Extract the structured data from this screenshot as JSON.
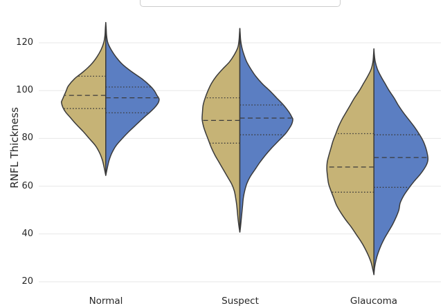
{
  "figure": {
    "ylabel": "RNFL Thickness"
  },
  "colors": {
    "left_fill": "#c6b376",
    "right_fill": "#5b7ec2",
    "outline": "#3a3a3a",
    "grid": "#e7e7e7",
    "tick_text": "#262626",
    "legend_border": "#cccccc",
    "background": "#ffffff"
  },
  "chart_data": {
    "type": "violin",
    "orientation": "vertical",
    "split": true,
    "title": "",
    "xlabel": "",
    "ylabel": "RNFL Thickness",
    "categories": [
      "Normal",
      "Suspect",
      "Glaucoma"
    ],
    "yticks": [
      20,
      40,
      60,
      80,
      100,
      120
    ],
    "ylim": [
      16.5,
      135
    ],
    "grid": "horizontal",
    "inner": "quartile",
    "legend": {
      "position": "top-center",
      "cut_off_at_top": true,
      "entries_visible": false
    },
    "groups": [
      {
        "category": "Normal",
        "left": {
          "min": 64.5,
          "q1": 92.5,
          "median": 98,
          "q3": 106,
          "max": 128.5,
          "profile": [
            [
              128.5,
              0
            ],
            [
              126,
              0.6
            ],
            [
              123,
              1.2
            ],
            [
              120,
              3
            ],
            [
              117,
              7
            ],
            [
              114,
              13
            ],
            [
              111,
              21
            ],
            [
              108,
              32
            ],
            [
              105,
              45
            ],
            [
              102,
              54
            ],
            [
              100,
              57
            ],
            [
              98,
              60
            ],
            [
              96,
              63
            ],
            [
              95,
              64
            ],
            [
              93,
              62
            ],
            [
              91,
              58
            ],
            [
              89,
              52
            ],
            [
              86,
              43
            ],
            [
              83,
              33
            ],
            [
              80,
              24
            ],
            [
              77,
              15
            ],
            [
              74,
              9
            ],
            [
              71,
              5
            ],
            [
              68,
              2.5
            ],
            [
              64.5,
              0
            ]
          ]
        },
        "right": {
          "min": 64.5,
          "q1": 90.7,
          "median": 97,
          "q3": 101.5,
          "max": 128.5,
          "profile": [
            [
              128.5,
              0
            ],
            [
              126,
              0.6
            ],
            [
              123,
              1.2
            ],
            [
              120,
              3
            ],
            [
              117,
              8
            ],
            [
              114,
              15
            ],
            [
              111,
              24
            ],
            [
              108,
              37
            ],
            [
              105,
              52
            ],
            [
              102,
              64
            ],
            [
              100,
              70
            ],
            [
              98,
              74
            ],
            [
              96.5,
              77
            ],
            [
              95,
              76
            ],
            [
              93,
              71
            ],
            [
              91,
              64
            ],
            [
              89,
              56
            ],
            [
              86,
              45
            ],
            [
              83,
              34
            ],
            [
              80,
              24
            ],
            [
              77,
              15
            ],
            [
              74,
              9
            ],
            [
              71,
              5
            ],
            [
              68,
              2.5
            ],
            [
              64.5,
              0
            ]
          ]
        }
      },
      {
        "category": "Suspect",
        "left": {
          "min": 40.8,
          "q1": 78,
          "median": 87.5,
          "q3": 97,
          "max": 126,
          "profile": [
            [
              126,
              0
            ],
            [
              124,
              0.5
            ],
            [
              121,
              1.2
            ],
            [
              118,
              3
            ],
            [
              115,
              8
            ],
            [
              112,
              15
            ],
            [
              109,
              25
            ],
            [
              106,
              34
            ],
            [
              103,
              41
            ],
            [
              100,
              46
            ],
            [
              97,
              50
            ],
            [
              94,
              53
            ],
            [
              91,
              54
            ],
            [
              88,
              54.5
            ],
            [
              85,
              52.5
            ],
            [
              82,
              49
            ],
            [
              79,
              45
            ],
            [
              76,
              41
            ],
            [
              73,
              36
            ],
            [
              70,
              30
            ],
            [
              67,
              24
            ],
            [
              64,
              18
            ],
            [
              61,
              12
            ],
            [
              58,
              8
            ],
            [
              55,
              6
            ],
            [
              52,
              4.5
            ],
            [
              49,
              3.5
            ],
            [
              46,
              2.5
            ],
            [
              43,
              1.2
            ],
            [
              40.8,
              0
            ]
          ]
        },
        "right": {
          "min": 40.8,
          "q1": 81.5,
          "median": 88.5,
          "q3": 94,
          "max": 126,
          "profile": [
            [
              126,
              0
            ],
            [
              124,
              0.5
            ],
            [
              121,
              1.2
            ],
            [
              118,
              3
            ],
            [
              115,
              6
            ],
            [
              112,
              10
            ],
            [
              109,
              16
            ],
            [
              106,
              23
            ],
            [
              103,
              32
            ],
            [
              100,
              43
            ],
            [
              97,
              53
            ],
            [
              94,
              63
            ],
            [
              91,
              71
            ],
            [
              89,
              75
            ],
            [
              88,
              76.5
            ],
            [
              86,
              75
            ],
            [
              84,
              71
            ],
            [
              82,
              66
            ],
            [
              79,
              56
            ],
            [
              76,
              46
            ],
            [
              73,
              37
            ],
            [
              70,
              29
            ],
            [
              67,
              22
            ],
            [
              64,
              15
            ],
            [
              61,
              10
            ],
            [
              58,
              7
            ],
            [
              55,
              5
            ],
            [
              52,
              4
            ],
            [
              49,
              3
            ],
            [
              46,
              2
            ],
            [
              43,
              1
            ],
            [
              40.8,
              0
            ]
          ]
        }
      },
      {
        "category": "Glaucoma",
        "left": {
          "min": 23,
          "q1": 57.5,
          "median": 68,
          "q3": 82,
          "max": 117.5,
          "profile": [
            [
              117.5,
              0
            ],
            [
              115,
              0.6
            ],
            [
              112,
              1.5
            ],
            [
              109,
              4
            ],
            [
              106,
              9
            ],
            [
              103,
              15
            ],
            [
              100,
              21
            ],
            [
              97,
              28
            ],
            [
              94,
              34
            ],
            [
              91,
              40
            ],
            [
              88,
              46
            ],
            [
              85,
              51
            ],
            [
              82,
              55
            ],
            [
              79,
              59
            ],
            [
              76,
              62
            ],
            [
              73,
              65
            ],
            [
              70,
              67.5
            ],
            [
              67,
              68
            ],
            [
              64,
              67
            ],
            [
              61,
              65.5
            ],
            [
              58,
              62
            ],
            [
              55,
              58
            ],
            [
              52,
              54
            ],
            [
              49,
              48
            ],
            [
              46,
              41
            ],
            [
              43,
              33
            ],
            [
              40,
              26
            ],
            [
              37,
              19
            ],
            [
              34,
              13
            ],
            [
              31,
              8
            ],
            [
              28,
              4
            ],
            [
              25,
              1.5
            ],
            [
              23,
              0
            ]
          ]
        },
        "right": {
          "min": 23,
          "q1": 59.5,
          "median": 72,
          "q3": 81.5,
          "max": 117.5,
          "profile": [
            [
              117.5,
              0
            ],
            [
              115,
              0.6
            ],
            [
              112,
              2
            ],
            [
              109,
              5
            ],
            [
              106,
              10
            ],
            [
              103,
              16
            ],
            [
              100,
              22
            ],
            [
              97,
              29
            ],
            [
              94,
              35
            ],
            [
              91,
              42
            ],
            [
              88,
              50
            ],
            [
              85,
              58
            ],
            [
              82,
              65
            ],
            [
              79,
              71
            ],
            [
              76,
              75
            ],
            [
              73,
              77.5
            ],
            [
              71,
              78
            ],
            [
              69,
              76
            ],
            [
              67,
              72
            ],
            [
              65,
              67
            ],
            [
              62,
              58
            ],
            [
              59,
              50
            ],
            [
              56,
              43
            ],
            [
              53,
              38
            ],
            [
              50,
              36
            ],
            [
              47,
              32
            ],
            [
              44,
              27
            ],
            [
              41,
              21
            ],
            [
              38,
              15
            ],
            [
              35,
              10
            ],
            [
              32,
              6
            ],
            [
              29,
              3
            ],
            [
              26,
              1
            ],
            [
              23,
              0
            ]
          ]
        }
      }
    ]
  }
}
